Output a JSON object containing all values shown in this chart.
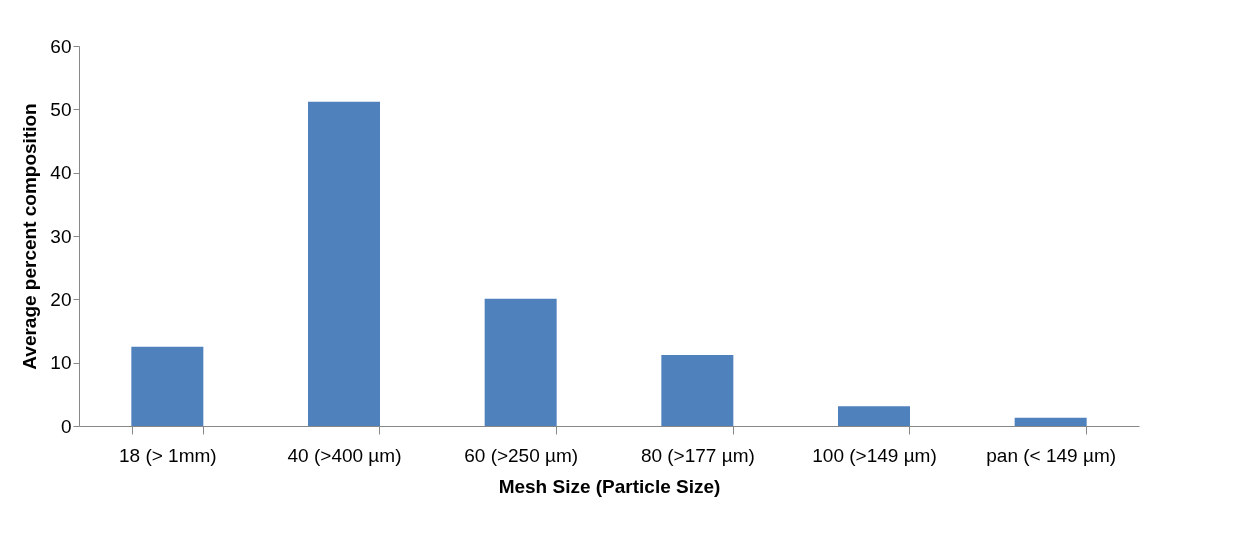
{
  "chart_data": {
    "type": "bar",
    "xlabel": "Mesh Size (Particle Size)",
    "ylabel": "Average percent composition",
    "categories": [
      "18 (> 1mm)",
      "40 (>400 µm)",
      "60 (>250 µm)",
      "80 (>177 µm)",
      "100 (>149 µm)",
      "pan (< 149 µm)"
    ],
    "values": [
      12.5,
      51.2,
      20.1,
      11.2,
      3.1,
      1.3
    ],
    "color": "#4f81bd",
    "ylim": [
      0,
      60
    ],
    "yticks": [
      0,
      10,
      20,
      30,
      40,
      50,
      60
    ],
    "grid": false
  }
}
